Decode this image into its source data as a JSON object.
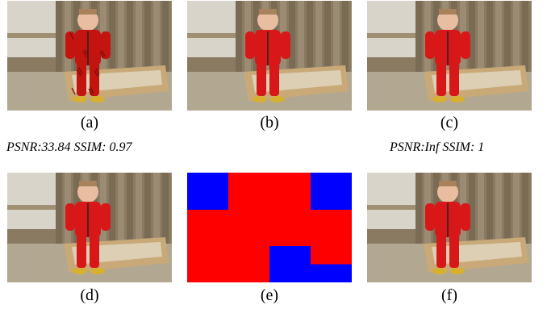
{
  "figure": {
    "panels": [
      {
        "id": "a",
        "caption": "(a)",
        "kind": "photo",
        "style": "noisy"
      },
      {
        "id": "b",
        "caption": "(b)",
        "kind": "photo",
        "style": "clean"
      },
      {
        "id": "c",
        "caption": "(c)",
        "kind": "photo",
        "style": "clean"
      },
      {
        "id": "d",
        "caption": "(d)",
        "kind": "photo",
        "style": "clean"
      },
      {
        "id": "e",
        "caption": "(e)",
        "kind": "block-map"
      },
      {
        "id": "f",
        "caption": "(f)",
        "kind": "photo",
        "style": "clean"
      }
    ],
    "metrics": {
      "a": "PSNR:33.84 SSIM: 0.97",
      "c": "PSNR:Inf SSIM: 1"
    },
    "block_map": {
      "rows": 3,
      "cols": 4,
      "cells": [
        [
          "blue",
          "red",
          "red",
          "blue"
        ],
        [
          "red",
          "red",
          "red",
          "red"
        ],
        [
          "red",
          "red",
          "blue",
          "red"
        ]
      ],
      "bottom_right_split": [
        "red",
        "blue"
      ]
    },
    "colors": {
      "red": "#ff0000",
      "blue": "#0000ff",
      "suit_red": "#d81818",
      "fence": "#8a7a62",
      "ground": "#b2a892",
      "sandbox": "#c8a977",
      "skin": "#e8bda0",
      "shoe": "#d8b030"
    }
  }
}
